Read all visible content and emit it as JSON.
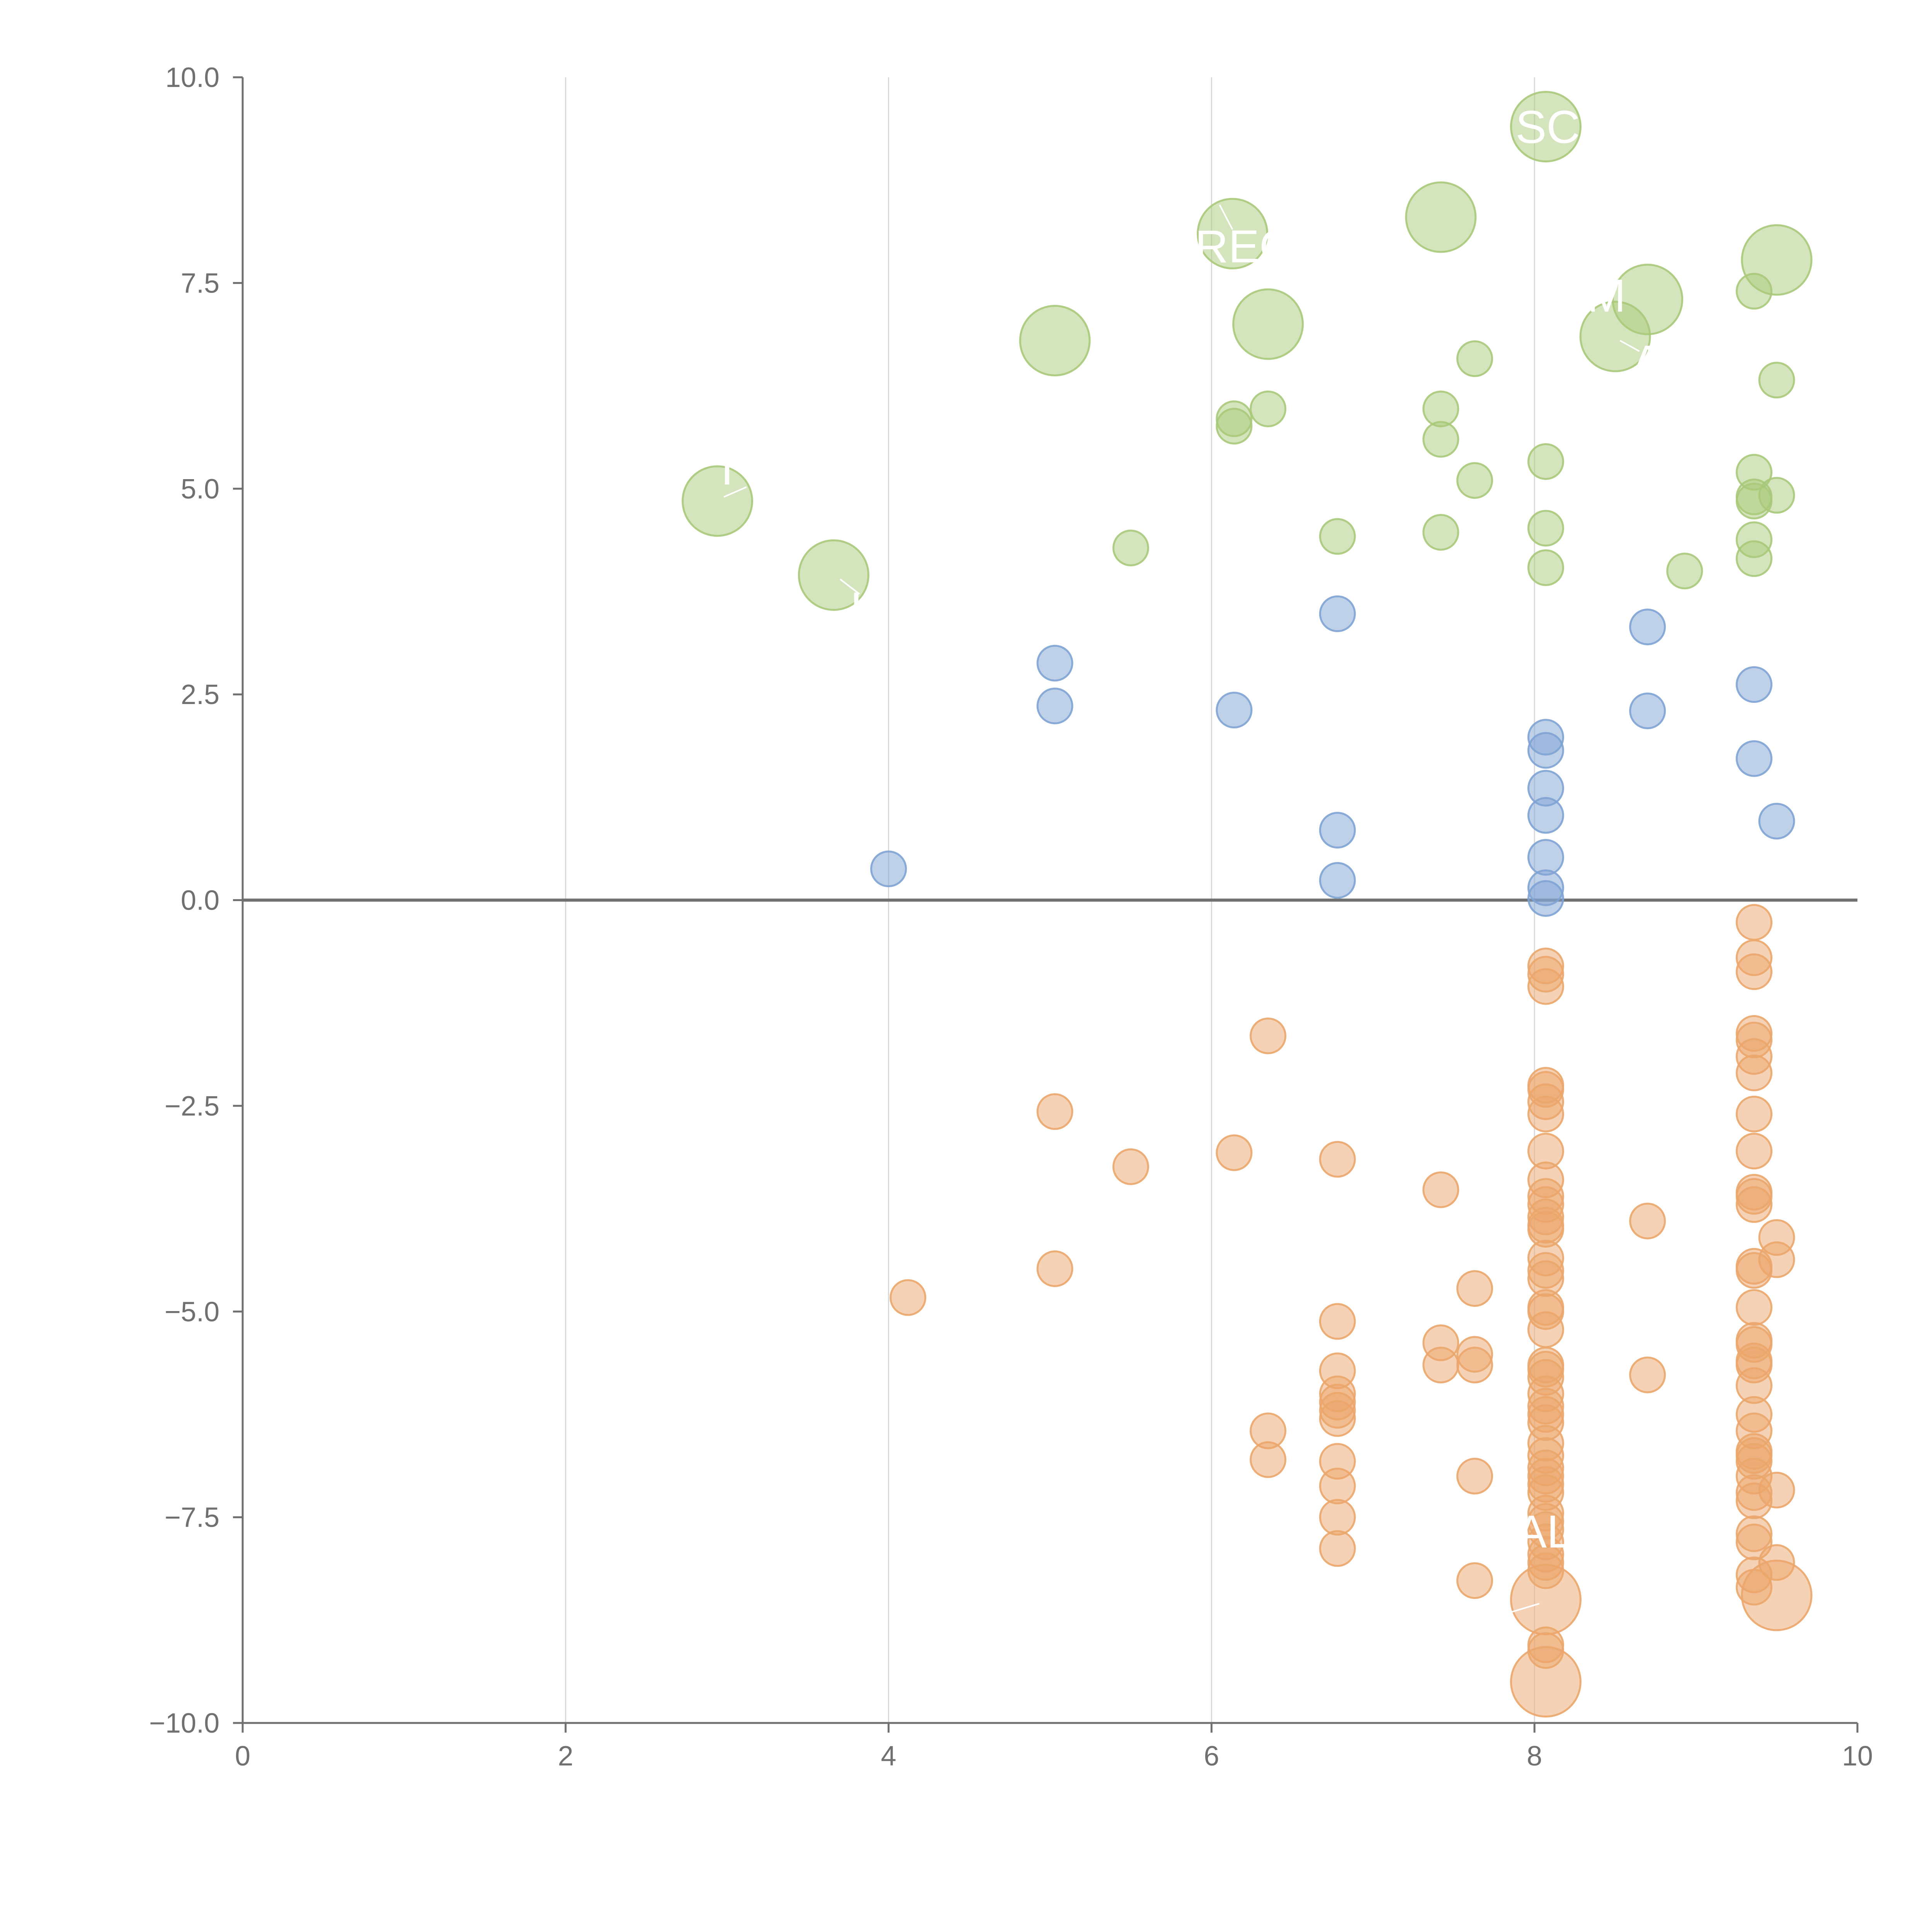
{
  "chart_data": {
    "type": "scatter",
    "title": "",
    "xlabel": "",
    "ylabel": "",
    "xlim": [
      0,
      10
    ],
    "ylim": [
      -10,
      10
    ],
    "x_ticks": [
      "0",
      "2",
      "4",
      "6",
      "8",
      "10"
    ],
    "y_ticks": [
      "−10.0",
      "−7.5",
      "−5.0",
      "−2.5",
      "0.0",
      "2.5",
      "5.0",
      "7.5",
      "10.0"
    ],
    "x_tick_values": [
      0,
      2,
      4,
      6,
      8,
      10
    ],
    "y_tick_values": [
      -10,
      -7.5,
      -5,
      -2.5,
      0,
      2.5,
      5,
      7.5,
      10
    ],
    "vertical_gridlines_at": [
      2,
      4,
      6,
      8
    ],
    "zero_line": true,
    "colors": {
      "green": "#a9c97a",
      "blue": "#7fa3d4",
      "orange": "#eba66b",
      "axis": "#707070",
      "grid": "#d8d8d8",
      "annotation": "#ffffff"
    },
    "series": [
      {
        "name": "green",
        "color": "#a9c97a",
        "points": [
          {
            "x": 8.07,
            "y": 9.4,
            "size": 3
          },
          {
            "x": 7.42,
            "y": 8.3,
            "size": 3
          },
          {
            "x": 6.13,
            "y": 8.1,
            "size": 3
          },
          {
            "x": 9.5,
            "y": 7.78,
            "size": 3
          },
          {
            "x": 8.7,
            "y": 7.3,
            "size": 3
          },
          {
            "x": 6.35,
            "y": 7.0,
            "size": 3
          },
          {
            "x": 8.5,
            "y": 6.85,
            "size": 3
          },
          {
            "x": 5.03,
            "y": 6.8,
            "size": 3
          },
          {
            "x": 2.94,
            "y": 4.85,
            "size": 3
          },
          {
            "x": 3.66,
            "y": 3.95,
            "size": 3
          },
          {
            "x": 9.36,
            "y": 7.4,
            "size": 1
          },
          {
            "x": 7.63,
            "y": 6.58,
            "size": 1
          },
          {
            "x": 9.5,
            "y": 6.32,
            "size": 1
          },
          {
            "x": 6.35,
            "y": 5.97,
            "size": 1
          },
          {
            "x": 7.42,
            "y": 5.97,
            "size": 1
          },
          {
            "x": 6.14,
            "y": 5.85,
            "size": 1
          },
          {
            "x": 6.14,
            "y": 5.76,
            "size": 1
          },
          {
            "x": 7.42,
            "y": 5.6,
            "size": 1
          },
          {
            "x": 8.07,
            "y": 5.33,
            "size": 1
          },
          {
            "x": 9.36,
            "y": 5.2,
            "size": 1
          },
          {
            "x": 7.63,
            "y": 5.1,
            "size": 1
          },
          {
            "x": 9.5,
            "y": 4.92,
            "size": 1
          },
          {
            "x": 9.36,
            "y": 4.9,
            "size": 1
          },
          {
            "x": 9.36,
            "y": 4.85,
            "size": 1
          },
          {
            "x": 8.07,
            "y": 4.52,
            "size": 1
          },
          {
            "x": 7.42,
            "y": 4.47,
            "size": 1
          },
          {
            "x": 6.78,
            "y": 4.42,
            "size": 1
          },
          {
            "x": 9.36,
            "y": 4.38,
            "size": 1
          },
          {
            "x": 5.5,
            "y": 4.28,
            "size": 1
          },
          {
            "x": 9.36,
            "y": 4.15,
            "size": 1
          },
          {
            "x": 8.07,
            "y": 4.04,
            "size": 1
          },
          {
            "x": 8.93,
            "y": 4.0,
            "size": 1
          }
        ]
      },
      {
        "name": "blue",
        "color": "#7fa3d4",
        "points": [
          {
            "x": 6.78,
            "y": 3.48
          },
          {
            "x": 8.7,
            "y": 3.32
          },
          {
            "x": 5.03,
            "y": 2.88
          },
          {
            "x": 9.36,
            "y": 2.62
          },
          {
            "x": 5.03,
            "y": 2.36
          },
          {
            "x": 6.14,
            "y": 2.31
          },
          {
            "x": 8.7,
            "y": 2.3
          },
          {
            "x": 8.07,
            "y": 1.98
          },
          {
            "x": 8.07,
            "y": 1.82
          },
          {
            "x": 9.36,
            "y": 1.72
          },
          {
            "x": 8.07,
            "y": 1.36
          },
          {
            "x": 8.07,
            "y": 1.03
          },
          {
            "x": 9.5,
            "y": 0.96
          },
          {
            "x": 6.78,
            "y": 0.85
          },
          {
            "x": 8.07,
            "y": 0.52
          },
          {
            "x": 4.0,
            "y": 0.38
          },
          {
            "x": 6.78,
            "y": 0.24
          },
          {
            "x": 8.07,
            "y": 0.15
          },
          {
            "x": 8.07,
            "y": 0.02
          }
        ]
      },
      {
        "name": "orange",
        "color": "#eba66b",
        "points": [
          {
            "x": 8.07,
            "y": -9.5,
            "size": 3
          },
          {
            "x": 8.07,
            "y": -8.5,
            "size": 3
          },
          {
            "x": 9.5,
            "y": -8.45,
            "size": 3
          },
          {
            "x": 9.36,
            "y": -0.27
          },
          {
            "x": 9.36,
            "y": -0.7
          },
          {
            "x": 8.07,
            "y": -0.8
          },
          {
            "x": 9.36,
            "y": -0.87
          },
          {
            "x": 8.07,
            "y": -0.9
          },
          {
            "x": 8.07,
            "y": -1.05
          },
          {
            "x": 6.35,
            "y": -1.65
          },
          {
            "x": 9.36,
            "y": -1.62
          },
          {
            "x": 9.36,
            "y": -1.7
          },
          {
            "x": 9.36,
            "y": -1.9
          },
          {
            "x": 9.36,
            "y": -2.1
          },
          {
            "x": 8.07,
            "y": -2.25
          },
          {
            "x": 8.07,
            "y": -2.3
          },
          {
            "x": 8.07,
            "y": -2.45
          },
          {
            "x": 5.03,
            "y": -2.57
          },
          {
            "x": 8.07,
            "y": -2.6
          },
          {
            "x": 9.36,
            "y": -2.6
          },
          {
            "x": 8.07,
            "y": -3.05
          },
          {
            "x": 9.36,
            "y": -3.05
          },
          {
            "x": 6.14,
            "y": -3.07
          },
          {
            "x": 6.78,
            "y": -3.15
          },
          {
            "x": 5.5,
            "y": -3.24
          },
          {
            "x": 8.07,
            "y": -3.4
          },
          {
            "x": 7.42,
            "y": -3.52
          },
          {
            "x": 9.36,
            "y": -3.55
          },
          {
            "x": 8.07,
            "y": -3.6
          },
          {
            "x": 9.36,
            "y": -3.6
          },
          {
            "x": 8.07,
            "y": -3.7
          },
          {
            "x": 9.36,
            "y": -3.7
          },
          {
            "x": 8.07,
            "y": -3.85
          },
          {
            "x": 8.7,
            "y": -3.9
          },
          {
            "x": 8.07,
            "y": -3.95
          },
          {
            "x": 8.07,
            "y": -4.0
          },
          {
            "x": 9.5,
            "y": -4.1
          },
          {
            "x": 8.07,
            "y": -4.35
          },
          {
            "x": 9.5,
            "y": -4.37
          },
          {
            "x": 9.36,
            "y": -4.45
          },
          {
            "x": 5.03,
            "y": -4.48
          },
          {
            "x": 8.07,
            "y": -4.5
          },
          {
            "x": 9.36,
            "y": -4.5
          },
          {
            "x": 8.07,
            "y": -4.6
          },
          {
            "x": 7.63,
            "y": -4.72
          },
          {
            "x": 4.12,
            "y": -4.83
          },
          {
            "x": 8.07,
            "y": -4.95
          },
          {
            "x": 9.36,
            "y": -4.95
          },
          {
            "x": 8.07,
            "y": -5.0
          },
          {
            "x": 6.78,
            "y": -5.12
          },
          {
            "x": 8.07,
            "y": -5.22
          },
          {
            "x": 9.36,
            "y": -5.35
          },
          {
            "x": 7.42,
            "y": -5.38
          },
          {
            "x": 9.36,
            "y": -5.4
          },
          {
            "x": 7.63,
            "y": -5.52
          },
          {
            "x": 9.36,
            "y": -5.6
          },
          {
            "x": 7.42,
            "y": -5.65
          },
          {
            "x": 8.07,
            "y": -5.65
          },
          {
            "x": 7.63,
            "y": -5.65
          },
          {
            "x": 9.36,
            "y": -5.65
          },
          {
            "x": 8.07,
            "y": -5.7
          },
          {
            "x": 6.78,
            "y": -5.72
          },
          {
            "x": 8.7,
            "y": -5.77
          },
          {
            "x": 8.07,
            "y": -5.8
          },
          {
            "x": 9.36,
            "y": -5.9
          },
          {
            "x": 8.07,
            "y": -6.0
          },
          {
            "x": 6.78,
            "y": -6.0
          },
          {
            "x": 6.78,
            "y": -6.1
          },
          {
            "x": 8.07,
            "y": -6.15
          },
          {
            "x": 6.78,
            "y": -6.2
          },
          {
            "x": 8.07,
            "y": -6.25
          },
          {
            "x": 6.78,
            "y": -6.3
          },
          {
            "x": 9.36,
            "y": -6.25
          },
          {
            "x": 8.07,
            "y": -6.35
          },
          {
            "x": 6.35,
            "y": -6.45
          },
          {
            "x": 9.36,
            "y": -6.45
          },
          {
            "x": 8.07,
            "y": -6.6
          },
          {
            "x": 9.36,
            "y": -6.7
          },
          {
            "x": 8.07,
            "y": -6.75
          },
          {
            "x": 9.36,
            "y": -6.75
          },
          {
            "x": 6.35,
            "y": -6.8
          },
          {
            "x": 6.78,
            "y": -6.82
          },
          {
            "x": 9.36,
            "y": -6.82
          },
          {
            "x": 8.07,
            "y": -6.9
          },
          {
            "x": 7.63,
            "y": -7.0
          },
          {
            "x": 8.07,
            "y": -7.0
          },
          {
            "x": 9.36,
            "y": -7.0
          },
          {
            "x": 8.07,
            "y": -7.1
          },
          {
            "x": 6.78,
            "y": -7.12
          },
          {
            "x": 9.5,
            "y": -7.17
          },
          {
            "x": 8.07,
            "y": -7.2
          },
          {
            "x": 9.36,
            "y": -7.2
          },
          {
            "x": 9.36,
            "y": -7.3
          },
          {
            "x": 8.07,
            "y": -7.45
          },
          {
            "x": 6.78,
            "y": -7.5
          },
          {
            "x": 8.07,
            "y": -7.55
          },
          {
            "x": 8.07,
            "y": -7.65
          },
          {
            "x": 9.36,
            "y": -7.7
          },
          {
            "x": 8.07,
            "y": -7.8
          },
          {
            "x": 9.36,
            "y": -7.8
          },
          {
            "x": 6.78,
            "y": -7.88
          },
          {
            "x": 8.07,
            "y": -7.95
          },
          {
            "x": 8.07,
            "y": -8.05
          },
          {
            "x": 9.5,
            "y": -8.05
          },
          {
            "x": 8.07,
            "y": -8.15
          },
          {
            "x": 9.36,
            "y": -8.2
          },
          {
            "x": 7.63,
            "y": -8.27
          },
          {
            "x": 9.36,
            "y": -8.35
          },
          {
            "x": 8.07,
            "y": -9.05
          },
          {
            "x": 8.07,
            "y": -9.12
          }
        ]
      }
    ],
    "annotations": [
      {
        "text": "SCF",
        "x": 8.17,
        "y": 9.35,
        "from_x": 8.07,
        "from_y": 9.4,
        "to_x": 8.07,
        "to_y": 9.4
      },
      {
        "text": "REC",
        "x": 6.2,
        "y": 7.9,
        "from_x": 6.05,
        "from_y": 8.45,
        "to_x": 6.13,
        "to_y": 8.15
      },
      {
        "text": "AM",
        "x": 8.35,
        "y": 7.3,
        "from_x": 8.7,
        "from_y": 7.3,
        "to_x": 8.7,
        "to_y": 7.3
      },
      {
        "text": "A",
        "x": 8.7,
        "y": 6.5,
        "from_x": 8.53,
        "from_y": 6.8,
        "to_x": 8.65,
        "to_y": 6.67
      },
      {
        "text": "I",
        "x": 3.0,
        "y": 5.2,
        "from_x": 2.98,
        "from_y": 4.9,
        "to_x": 3.12,
        "to_y": 5.02
      },
      {
        "text": "I",
        "x": 3.8,
        "y": 3.5,
        "from_x": 3.7,
        "from_y": 3.9,
        "to_x": 3.82,
        "to_y": 3.72
      },
      {
        "text": "ALI",
        "x": 8.1,
        "y": -7.72,
        "from_x": 8.03,
        "from_y": -8.55,
        "to_x": 7.86,
        "to_y": -8.65
      }
    ]
  }
}
